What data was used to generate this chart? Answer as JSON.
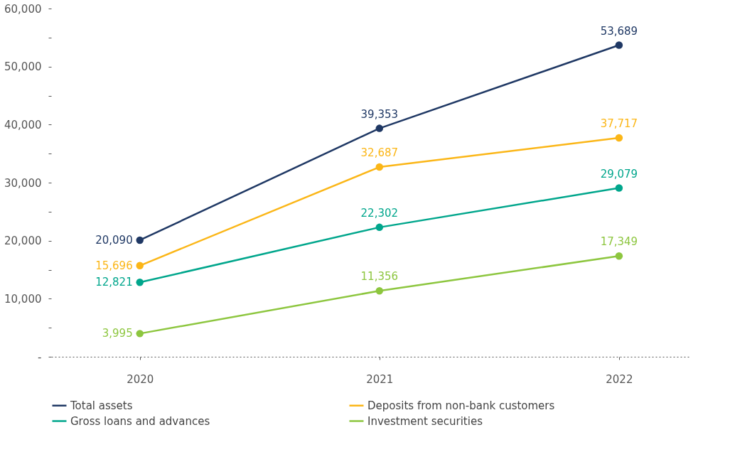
{
  "chart_data": {
    "type": "line",
    "categories": [
      "2020",
      "2021",
      "2022"
    ],
    "series": [
      {
        "name": "Total assets",
        "color": "#1f3864",
        "values": [
          20090,
          39353,
          53689
        ],
        "value_labels": [
          "20,090",
          "39,353",
          "53,689"
        ]
      },
      {
        "name": "Deposits from non-bank customers",
        "color": "#fbb617",
        "values": [
          15696,
          32687,
          37717
        ],
        "value_labels": [
          "15,696",
          "32,687",
          "37,717"
        ]
      },
      {
        "name": "Gross loans and advances",
        "color": "#00a68c",
        "values": [
          12821,
          22302,
          29079
        ],
        "value_labels": [
          "12,821",
          "22,302",
          "29,079"
        ]
      },
      {
        "name": "Investment securities",
        "color": "#8dc63f",
        "values": [
          3995,
          11356,
          17349
        ],
        "value_labels": [
          "3,995",
          "11,356",
          "17,349"
        ]
      }
    ],
    "ylim": [
      0,
      60000
    ],
    "yticks": [
      {
        "value": 0,
        "label": "-"
      },
      {
        "value": 5000,
        "label": null
      },
      {
        "value": 10000,
        "label": "10,000"
      },
      {
        "value": 15000,
        "label": null
      },
      {
        "value": 20000,
        "label": "20,000"
      },
      {
        "value": 25000,
        "label": null
      },
      {
        "value": 30000,
        "label": "30,000"
      },
      {
        "value": 35000,
        "label": null
      },
      {
        "value": 40000,
        "label": "40,000"
      },
      {
        "value": 45000,
        "label": null
      },
      {
        "value": 50000,
        "label": "50,000"
      },
      {
        "value": 55000,
        "label": null
      },
      {
        "value": 60000,
        "label": "60,000"
      }
    ],
    "grid": false,
    "legend": "bottom",
    "marker": "circle",
    "line_style": "solid"
  }
}
